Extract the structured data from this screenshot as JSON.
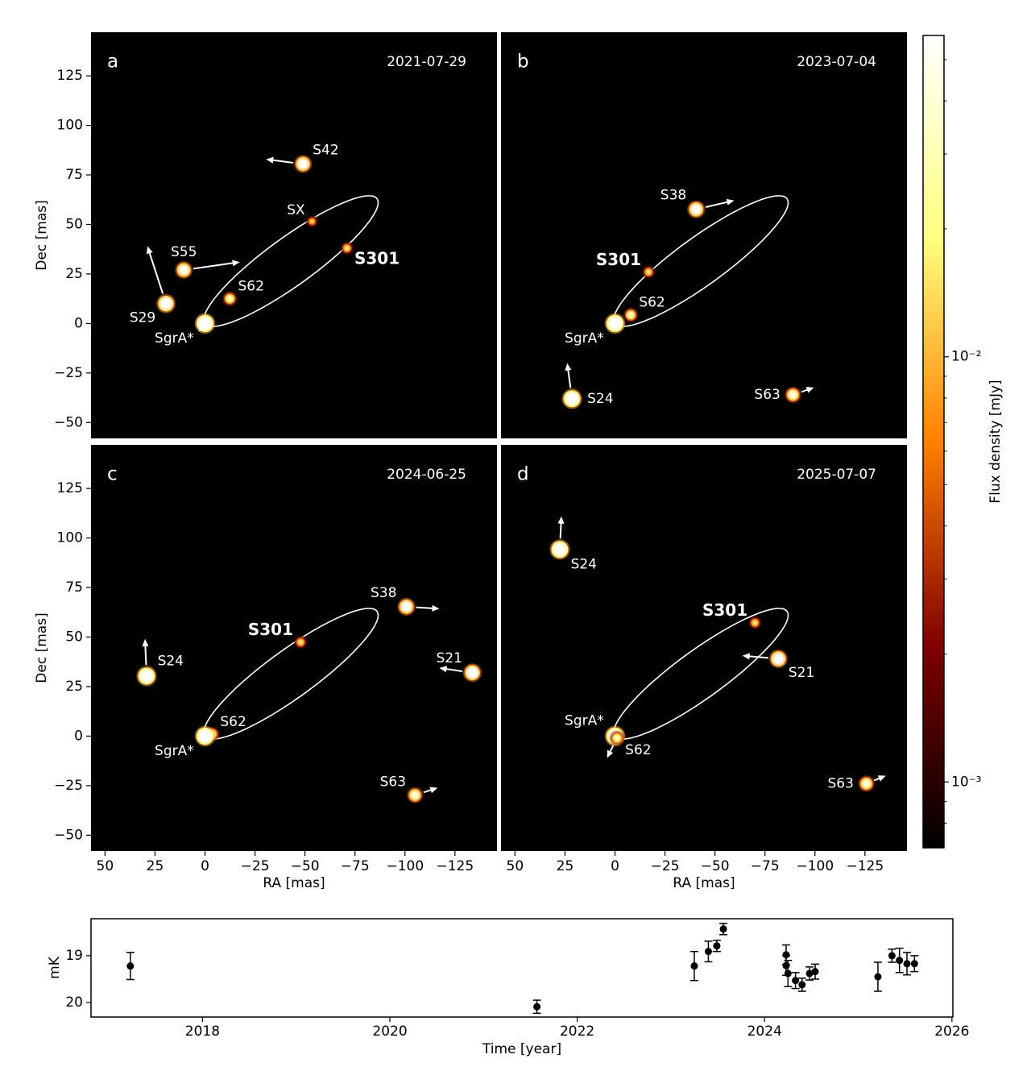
{
  "chart_data": [
    {
      "type": "scatter",
      "label": "a",
      "date": "2021-07-29",
      "xlim": [
        57,
        -146
      ],
      "ylim": [
        -58,
        147
      ],
      "yticks": [
        {
          "value": -50,
          "label": "−50"
        },
        {
          "value": -25,
          "label": "−25"
        },
        0,
        25,
        50,
        75,
        100,
        125
      ],
      "ylabel": "Dec [mas]",
      "orbit": {
        "center": [
          -43,
          31.5
        ],
        "major": [
          -43,
          31.5
        ],
        "minor": 12
      },
      "stars": [
        {
          "name": "S42",
          "x": -49,
          "y": 80.5,
          "flux": 0.02,
          "motion": [
            18.5,
            2.4
          ],
          "label_pos": "ne"
        },
        {
          "name": "SX",
          "x": -53.5,
          "y": 51.5,
          "flux": 0.003,
          "label_pos": "nw"
        },
        {
          "name": "S301",
          "x": -71,
          "y": 38,
          "flux": 0.004,
          "label_pos": "se",
          "bold": true
        },
        {
          "name": "S55",
          "x": 10.6,
          "y": 27,
          "flux": 0.018,
          "motion": [
            -28,
            4
          ],
          "label_pos": "n"
        },
        {
          "name": "S62",
          "x": -12.4,
          "y": 12.5,
          "flux": 0.007,
          "label_pos": "ne"
        },
        {
          "name": "S29",
          "x": 19.5,
          "y": 10,
          "flux": 0.03,
          "motion": [
            9.3,
            29
          ],
          "label_pos": "sw"
        },
        {
          "name": "SgrA*",
          "x": 0,
          "y": 0,
          "flux": 0.05,
          "motion": [
            3,
            -4
          ],
          "label_pos": "sw"
        }
      ]
    },
    {
      "type": "scatter",
      "label": "b",
      "date": "2023-07-04",
      "xlim": [
        57,
        -146
      ],
      "ylim": [
        -58,
        147
      ],
      "orbit": {
        "center": [
          -43,
          31.5
        ],
        "major": [
          -43,
          31.5
        ],
        "minor": 12
      },
      "stars": [
        {
          "name": "S38",
          "x": -40.6,
          "y": 57.6,
          "flux": 0.02,
          "motion": [
            -19,
            4.5
          ],
          "label_pos": "nw"
        },
        {
          "name": "S301",
          "x": -16.8,
          "y": 26,
          "flux": 0.004,
          "label_pos": "nw",
          "bold": true
        },
        {
          "name": "S62",
          "x": -7.9,
          "y": 4.3,
          "flux": 0.007,
          "label_pos": "ne"
        },
        {
          "name": "SgrA*",
          "x": 0,
          "y": 0,
          "flux": 0.05,
          "label_pos": "sw"
        },
        {
          "name": "S24",
          "x": 21.5,
          "y": -38,
          "flux": 0.045,
          "motion": [
            2.4,
            18
          ],
          "label_pos": "e"
        },
        {
          "name": "S63",
          "x": -89,
          "y": -36,
          "flux": 0.012,
          "motion": [
            -10.5,
            3.7
          ],
          "label_pos": "w"
        }
      ]
    },
    {
      "type": "scatter",
      "label": "c",
      "date": "2024-06-25",
      "xlim": [
        57,
        -146
      ],
      "ylim": [
        -58,
        147
      ],
      "xticks": [
        50,
        25,
        0,
        {
          "value": -25,
          "label": "−25"
        },
        {
          "value": -50,
          "label": "−50"
        },
        {
          "value": -75,
          "label": "−75"
        },
        {
          "value": -100,
          "label": "−100"
        },
        {
          "value": -125,
          "label": "−125"
        }
      ],
      "yticks": [
        {
          "value": -50,
          "label": "−50"
        },
        {
          "value": -25,
          "label": "−25"
        },
        0,
        25,
        50,
        75,
        100,
        125
      ],
      "xlabel": "RA [mas]",
      "ylabel": "Dec [mas]",
      "orbit": {
        "center": [
          -43,
          31.5
        ],
        "major": [
          -43,
          31.5
        ],
        "minor": 12
      },
      "stars": [
        {
          "name": "S38",
          "x": -100.7,
          "y": 65.3,
          "flux": 0.02,
          "motion": [
            -16.5,
            -1
          ],
          "label_pos": "nw"
        },
        {
          "name": "S301",
          "x": -47.8,
          "y": 47.4,
          "flux": 0.004,
          "label_pos": "nw",
          "bold": true
        },
        {
          "name": "S24",
          "x": 29.2,
          "y": 30.3,
          "flux": 0.045,
          "motion": [
            0.8,
            18.7
          ],
          "label_pos": "ne"
        },
        {
          "name": "S21",
          "x": -133.7,
          "y": 32,
          "flux": 0.025,
          "motion": [
            16.5,
            2.4
          ],
          "label_pos": "nw"
        },
        {
          "name": "S62",
          "x": -3.5,
          "y": 1,
          "flux": 0.007,
          "label_pos": "ne"
        },
        {
          "name": "SgrA*",
          "x": 0,
          "y": 0,
          "flux": 0.05,
          "label_pos": "sw"
        },
        {
          "name": "S63",
          "x": -105,
          "y": -29.8,
          "flux": 0.012,
          "motion": [
            -11.3,
            3.7
          ],
          "label_pos": "nw"
        }
      ]
    },
    {
      "type": "scatter",
      "label": "d",
      "date": "2025-07-07",
      "xlim": [
        57,
        -146
      ],
      "ylim": [
        -58,
        147
      ],
      "xticks": [
        50,
        25,
        0,
        {
          "value": -25,
          "label": "−25"
        },
        {
          "value": -50,
          "label": "−50"
        },
        {
          "value": -75,
          "label": "−75"
        },
        {
          "value": -100,
          "label": "−100"
        },
        {
          "value": -125,
          "label": "−125"
        }
      ],
      "xlabel": "RA [mas]",
      "orbit": {
        "center": [
          -43,
          31.5
        ],
        "major": [
          -43,
          31.5
        ],
        "minor": 12
      },
      "stars": [
        {
          "name": "S24",
          "x": 27.6,
          "y": 94.2,
          "flux": 0.045,
          "motion": [
            -0.8,
            16.7
          ],
          "label_pos": "se"
        },
        {
          "name": "S301",
          "x": -70,
          "y": 57.2,
          "flux": 0.004,
          "label_pos": "nw",
          "bold": true
        },
        {
          "name": "S21",
          "x": -81.7,
          "y": 39,
          "flux": 0.025,
          "motion": [
            18,
            1.6
          ],
          "label_pos": "se"
        },
        {
          "name": "SgrA*",
          "x": 0,
          "y": 0,
          "flux": 0.05,
          "label_pos": "nw"
        },
        {
          "name": "S62",
          "x": -1,
          "y": -1,
          "flux": 0.007,
          "motion": [
            5,
            -10
          ],
          "label_pos": "se"
        },
        {
          "name": "S63",
          "x": -125.7,
          "y": -24,
          "flux": 0.012,
          "motion": [
            -9.7,
            4
          ],
          "label_pos": "w"
        }
      ]
    },
    {
      "type": "errorbar",
      "xlim": [
        2016.81,
        2026.01
      ],
      "ylim": [
        20.31,
        18.21
      ],
      "xticks": [
        2018,
        2020,
        2022,
        2024,
        2026
      ],
      "yticks": [
        19,
        20
      ],
      "xlabel": "Time [year]",
      "ylabel": "mK",
      "x": [
        2017.23,
        2021.57,
        2023.25,
        2023.4,
        2023.49,
        2023.56,
        2024.23,
        2024.23,
        2024.25,
        2024.33,
        2024.4,
        2024.48,
        2024.54,
        2025.21,
        2025.36,
        2025.44,
        2025.52,
        2025.6
      ],
      "values": [
        19.22,
        20.09,
        19.22,
        18.91,
        18.79,
        18.43,
        18.98,
        19.21,
        19.38,
        19.53,
        19.62,
        19.38,
        19.34,
        19.45,
        19.0,
        19.1,
        19.17,
        19.17
      ],
      "errors": [
        0.29,
        0.14,
        0.31,
        0.22,
        0.12,
        0.12,
        0.21,
        0.21,
        0.28,
        0.17,
        0.14,
        0.14,
        0.16,
        0.31,
        0.14,
        0.26,
        0.24,
        0.17
      ]
    }
  ],
  "colorbar": {
    "label": "Flux density [mJy]",
    "lim": [
      0.0007,
      0.057
    ],
    "log": true,
    "ticks": [
      {
        "value": 0.001,
        "label": "10⁻³"
      },
      {
        "value": 0.01,
        "label": "10⁻²"
      }
    ],
    "minor_ticks": [
      0.0008,
      0.0009,
      0.002,
      0.003,
      0.004,
      0.005,
      0.006,
      0.007,
      0.008,
      0.009,
      0.02,
      0.03,
      0.04,
      0.05
    ]
  }
}
